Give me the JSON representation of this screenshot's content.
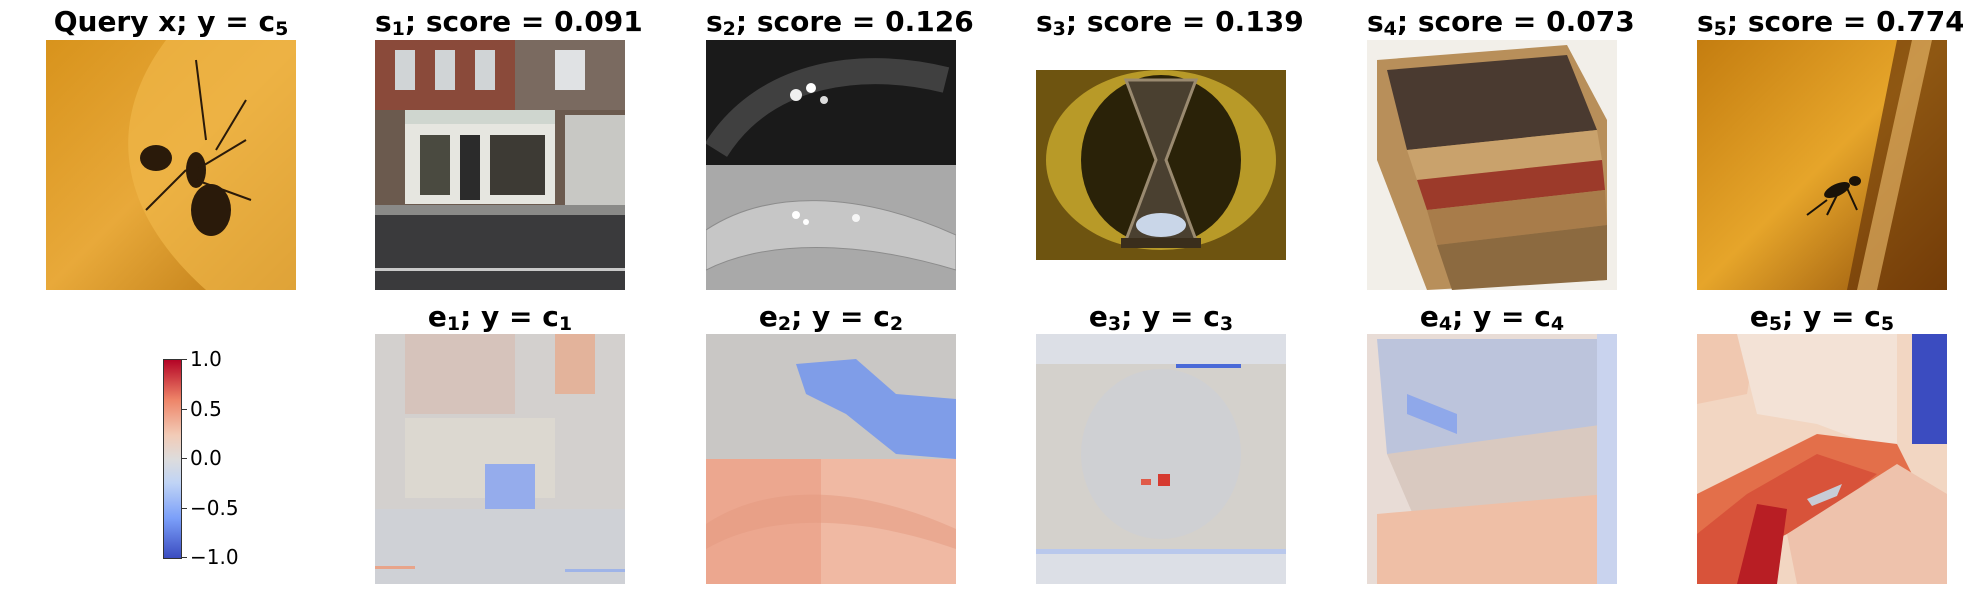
{
  "query": {
    "title": "Query x; y = c",
    "sub": "5"
  },
  "panels_top": [
    {
      "prefix": "s",
      "sub": "1",
      "rest": "; score = 0.091"
    },
    {
      "prefix": "s",
      "sub": "2",
      "rest": "; score = 0.126"
    },
    {
      "prefix": "s",
      "sub": "3",
      "rest": "; score = 0.139"
    },
    {
      "prefix": "s",
      "sub": "4",
      "rest": "; score = 0.073"
    },
    {
      "prefix": "s",
      "sub": "5",
      "rest": "; score = 0.774"
    }
  ],
  "panels_bottom": [
    {
      "prefix": "e",
      "sub": "1",
      "rest": "; y = c",
      "sub2": "1"
    },
    {
      "prefix": "e",
      "sub": "2",
      "rest": "; y = c",
      "sub2": "2"
    },
    {
      "prefix": "e",
      "sub": "3",
      "rest": "; y = c",
      "sub2": "3"
    },
    {
      "prefix": "e",
      "sub": "4",
      "rest": "; y = c",
      "sub2": "4"
    },
    {
      "prefix": "e",
      "sub": "5",
      "rest": "; y = c",
      "sub2": "5"
    }
  ],
  "colorbar": {
    "ticks": [
      "1.0",
      "0.5",
      "0.0",
      "−0.5",
      "−1.0"
    ],
    "low_color": "#3b4cc0",
    "mid_color": "#dddcdc",
    "high_color": "#b40426"
  },
  "image_subjects": [
    "ant-photo",
    "shopfront-photo",
    "microscopy-worm-photo",
    "hourglass-photo",
    "crates-photo",
    "ant-on-leaf-photo"
  ]
}
